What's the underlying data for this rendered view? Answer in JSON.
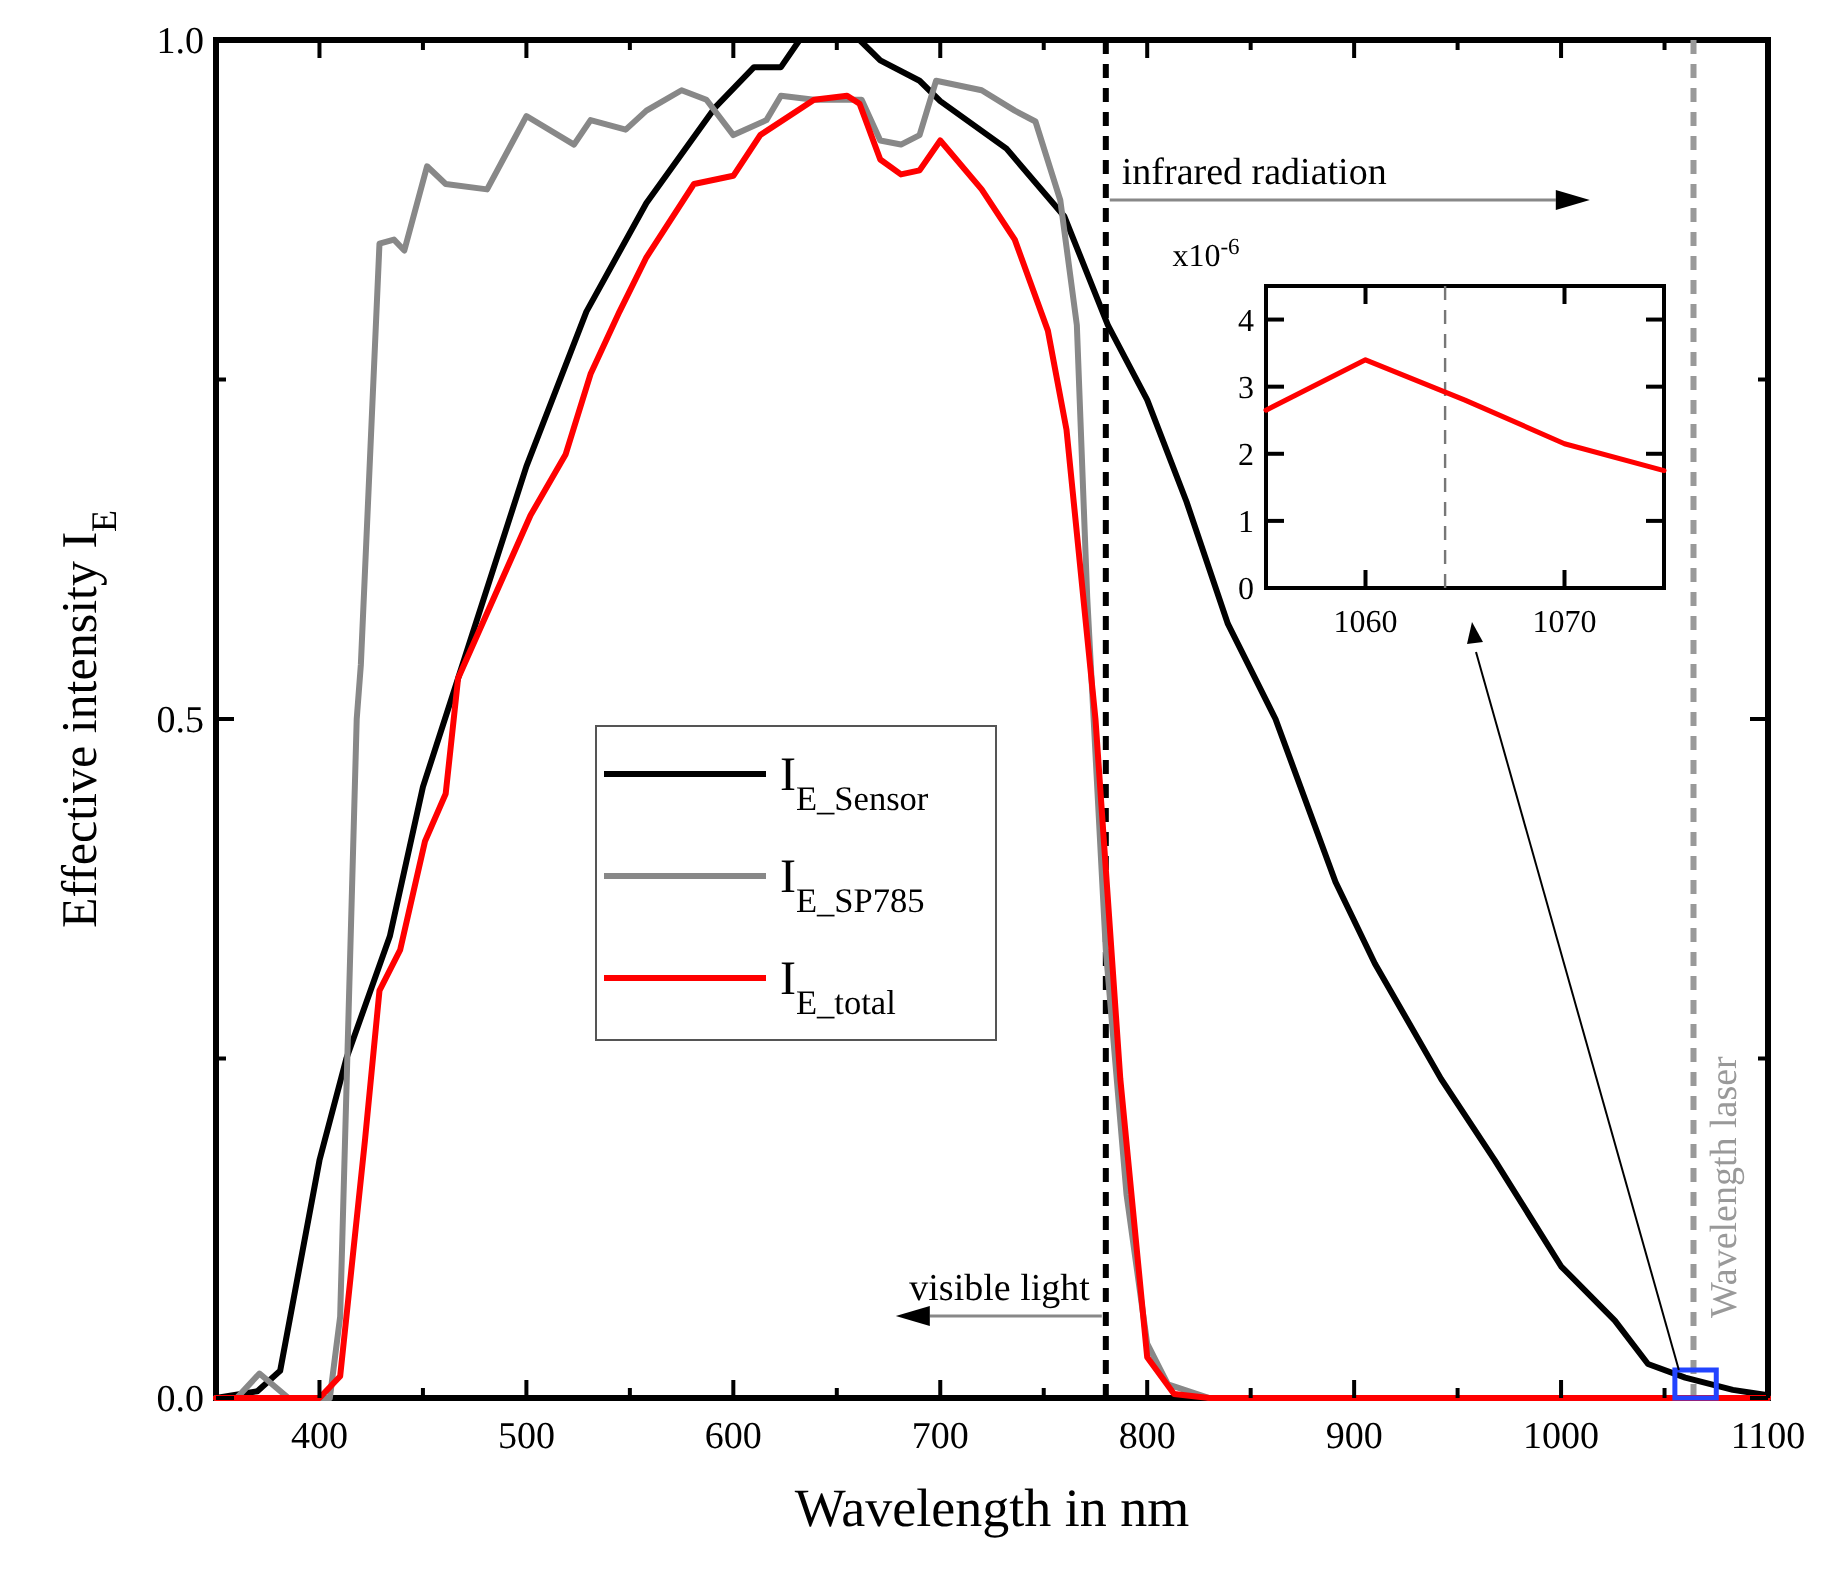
{
  "chart_data": [
    {
      "type": "line",
      "xlabel": "Wavelength in nm",
      "ylabel": "Effective intensity I$_{E}$",
      "xlim": [
        350,
        1100
      ],
      "ylim": [
        0,
        1
      ],
      "xticks": [
        400,
        {
          "value": 450,
          "label": null
        },
        500,
        {
          "value": 550,
          "label": null
        },
        600,
        {
          "value": 650,
          "label": null
        },
        700,
        {
          "value": 750,
          "label": null
        },
        800,
        {
          "value": 850,
          "label": null
        },
        900,
        {
          "value": 950,
          "label": null
        },
        1000,
        {
          "value": 1050,
          "label": null
        },
        1100
      ],
      "yticks": [
        {
          "value": 0,
          "label": "0.0"
        },
        {
          "value": 0.25,
          "label": null
        },
        0.5,
        {
          "value": 0.75,
          "label": null
        },
        {
          "value": 1,
          "label": "1.0"
        }
      ],
      "legend": "center",
      "line_style": "solid",
      "marker": "none",
      "series": [
        {
          "name": "I$_{E_Sensor}$",
          "color": "#000000",
          "x": [
            350,
            370,
            381,
            400,
            413,
            434,
            450,
            467,
            500,
            529,
            558,
            591,
            610,
            623,
            632,
            650,
            661,
            671,
            690,
            700,
            732,
            760,
            781,
            800,
            819,
            839,
            862,
            891,
            910,
            942,
            968,
            1000,
            1026,
            1042,
            1060,
            1083,
            1100
          ],
          "values": [
            0,
            0.005,
            0.02,
            0.175,
            0.25,
            0.34,
            0.45,
            0.53,
            0.686,
            0.8,
            0.88,
            0.95,
            0.98,
            0.98,
            1.0,
            1.0,
            1.0,
            0.985,
            0.97,
            0.955,
            0.92,
            0.87,
            0.79,
            0.735,
            0.66,
            0.57,
            0.5,
            0.38,
            0.32,
            0.235,
            0.175,
            0.097,
            0.057,
            0.025,
            0.015,
            0.006,
            0.002
          ]
        },
        {
          "name": "I$_{E_SP785}$",
          "color": "#888888",
          "x": [
            350,
            360,
            371,
            385,
            405,
            410,
            418,
            420,
            429,
            436,
            441,
            452,
            461,
            481,
            500,
            523,
            531,
            548,
            558,
            575,
            587,
            600,
            616,
            623,
            639,
            662,
            671,
            681,
            690,
            698,
            720,
            736,
            746,
            758,
            766,
            771,
            780,
            790,
            800,
            810,
            830,
            1100
          ],
          "values": [
            0,
            0,
            0.018,
            0,
            0,
            0.06,
            0.5,
            0.54,
            0.85,
            0.853,
            0.845,
            0.907,
            0.894,
            0.89,
            0.944,
            0.923,
            0.941,
            0.934,
            0.948,
            0.963,
            0.956,
            0.93,
            0.941,
            0.959,
            0.956,
            0.956,
            0.926,
            0.923,
            0.93,
            0.97,
            0.963,
            0.948,
            0.94,
            0.882,
            0.79,
            0.59,
            0.33,
            0.15,
            0.04,
            0.01,
            0,
            0
          ]
        },
        {
          "name": "I$_{E_total}$",
          "color": "#ff0000",
          "x": [
            350,
            400,
            410,
            422,
            429,
            439,
            451,
            461,
            467,
            502,
            519,
            531,
            545,
            558,
            581,
            600,
            613,
            639,
            655,
            661,
            671,
            681,
            690,
            700,
            720,
            736,
            752,
            761,
            775,
            787,
            800,
            813,
            830,
            1100
          ],
          "values": [
            0,
            0,
            0.016,
            0.19,
            0.3,
            0.33,
            0.41,
            0.445,
            0.53,
            0.65,
            0.695,
            0.754,
            0.8,
            0.84,
            0.894,
            0.9,
            0.93,
            0.956,
            0.959,
            0.953,
            0.912,
            0.901,
            0.904,
            0.926,
            0.89,
            0.853,
            0.786,
            0.713,
            0.5,
            0.235,
            0.03,
            0.003,
            0,
            0
          ]
        }
      ],
      "ref_lines": [
        {
          "axis": "x",
          "value": 780,
          "color": "#000000",
          "line_style": "dashed"
        },
        {
          "axis": "x",
          "value": 1064,
          "label": "Wavelength laser",
          "color": "#999999",
          "line_style": "dashed"
        }
      ],
      "annotations": [
        "infrared radiation",
        "visible light"
      ]
    },
    {
      "type": "line",
      "ylabel": "x10$^{-6}$",
      "xlim": [
        1055,
        1075
      ],
      "ylim": [
        0,
        4.5
      ],
      "xticks": [
        1060,
        1070
      ],
      "yticks": [
        0,
        1,
        2,
        3,
        4
      ],
      "marker": "none",
      "line_style": "solid",
      "series": [
        {
          "color": "#ff0000",
          "x": [
            1055,
            1060,
            1065,
            1070,
            1075
          ],
          "values": [
            2.65,
            3.4,
            2.8,
            2.15,
            1.75
          ]
        }
      ],
      "ref_lines": [
        {
          "axis": "x",
          "value": 1064,
          "color": "#777777",
          "line_style": "dashed"
        }
      ]
    }
  ]
}
